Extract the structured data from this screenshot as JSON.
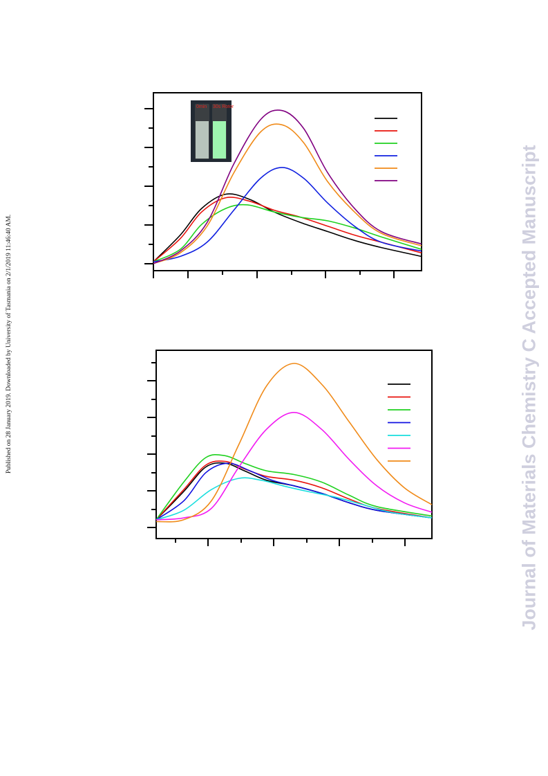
{
  "side_note": "Published on 28 January 2019. Downloaded by University of Tasmania on 2/1/2019 11:46:40 AM.",
  "watermark": "Journal of Materials Chemistry C Accepted Manuscript",
  "inset": {
    "vial_labels": [
      "0min",
      "30s Rotor"
    ],
    "colors": {
      "background": "#222a33",
      "left_vial": "#b8c4bc",
      "right_vial": "#9ff5b0"
    }
  },
  "chart_data": [
    {
      "type": "line",
      "title": "",
      "xlabel": "",
      "ylabel": "",
      "xlim": [
        0,
        1
      ],
      "ylim": [
        0,
        1
      ],
      "legend_position": "top-right",
      "grid": false,
      "series": [
        {
          "color": "#000000",
          "x": [
            0,
            0.1,
            0.18,
            0.27,
            0.36,
            0.45,
            0.55,
            0.65,
            0.75,
            0.85,
            1.0
          ],
          "y": [
            0.05,
            0.2,
            0.35,
            0.43,
            0.4,
            0.33,
            0.27,
            0.22,
            0.17,
            0.13,
            0.08
          ]
        },
        {
          "color": "#e8120c",
          "x": [
            0,
            0.1,
            0.18,
            0.27,
            0.36,
            0.45,
            0.55,
            0.65,
            0.75,
            0.85,
            1.0
          ],
          "y": [
            0.05,
            0.18,
            0.33,
            0.41,
            0.39,
            0.34,
            0.3,
            0.25,
            0.2,
            0.16,
            0.1
          ]
        },
        {
          "color": "#1fd11f",
          "x": [
            0,
            0.1,
            0.18,
            0.27,
            0.35,
            0.45,
            0.55,
            0.65,
            0.75,
            0.85,
            1.0
          ],
          "y": [
            0.05,
            0.12,
            0.26,
            0.35,
            0.37,
            0.33,
            0.3,
            0.28,
            0.24,
            0.19,
            0.12
          ]
        },
        {
          "color": "#1020e0",
          "x": [
            0,
            0.1,
            0.2,
            0.3,
            0.4,
            0.48,
            0.56,
            0.65,
            0.75,
            0.85,
            1.0
          ],
          "y": [
            0.05,
            0.08,
            0.16,
            0.34,
            0.52,
            0.58,
            0.52,
            0.38,
            0.25,
            0.16,
            0.11
          ]
        },
        {
          "color": "#f08a18",
          "x": [
            0,
            0.1,
            0.2,
            0.3,
            0.4,
            0.48,
            0.56,
            0.65,
            0.75,
            0.85,
            1.0
          ],
          "y": [
            0.04,
            0.1,
            0.25,
            0.55,
            0.78,
            0.82,
            0.72,
            0.5,
            0.33,
            0.21,
            0.14
          ]
        },
        {
          "color": "#800080",
          "x": [
            0,
            0.1,
            0.2,
            0.3,
            0.4,
            0.48,
            0.56,
            0.65,
            0.75,
            0.85,
            1.0
          ],
          "y": [
            0.04,
            0.11,
            0.27,
            0.6,
            0.85,
            0.9,
            0.8,
            0.55,
            0.35,
            0.22,
            0.15
          ]
        }
      ]
    },
    {
      "type": "line",
      "title": "",
      "xlabel": "",
      "ylabel": "",
      "xlim": [
        0,
        1
      ],
      "ylim": [
        0,
        1
      ],
      "legend_position": "top-right",
      "grid": false,
      "series": [
        {
          "color": "#000000",
          "x": [
            0,
            0.1,
            0.18,
            0.25,
            0.32,
            0.4,
            0.5,
            0.6,
            0.7,
            0.8,
            1.0
          ],
          "y": [
            0.1,
            0.25,
            0.38,
            0.4,
            0.36,
            0.31,
            0.28,
            0.24,
            0.19,
            0.15,
            0.11
          ]
        },
        {
          "color": "#e8120c",
          "x": [
            0,
            0.1,
            0.18,
            0.25,
            0.32,
            0.4,
            0.5,
            0.6,
            0.7,
            0.8,
            1.0
          ],
          "y": [
            0.1,
            0.26,
            0.39,
            0.41,
            0.37,
            0.33,
            0.31,
            0.27,
            0.21,
            0.16,
            0.11
          ]
        },
        {
          "color": "#1fd11f",
          "x": [
            0,
            0.1,
            0.18,
            0.25,
            0.32,
            0.4,
            0.5,
            0.6,
            0.7,
            0.8,
            1.0
          ],
          "y": [
            0.1,
            0.3,
            0.43,
            0.44,
            0.4,
            0.36,
            0.34,
            0.3,
            0.23,
            0.17,
            0.12
          ]
        },
        {
          "color": "#1010e0",
          "x": [
            0,
            0.1,
            0.18,
            0.26,
            0.34,
            0.42,
            0.5,
            0.6,
            0.7,
            0.8,
            1.0
          ],
          "y": [
            0.1,
            0.2,
            0.35,
            0.4,
            0.36,
            0.31,
            0.28,
            0.24,
            0.19,
            0.15,
            0.11
          ]
        },
        {
          "color": "#18dede",
          "x": [
            0,
            0.1,
            0.2,
            0.3,
            0.38,
            0.46,
            0.55,
            0.65,
            0.75,
            0.85,
            1.0
          ],
          "y": [
            0.1,
            0.15,
            0.26,
            0.32,
            0.31,
            0.28,
            0.25,
            0.22,
            0.18,
            0.14,
            0.11
          ]
        },
        {
          "color": "#f21af2",
          "x": [
            0,
            0.1,
            0.2,
            0.3,
            0.4,
            0.5,
            0.6,
            0.7,
            0.8,
            0.9,
            1.0
          ],
          "y": [
            0.1,
            0.11,
            0.16,
            0.38,
            0.58,
            0.67,
            0.58,
            0.42,
            0.28,
            0.19,
            0.14
          ]
        },
        {
          "color": "#f08a18",
          "x": [
            0,
            0.1,
            0.2,
            0.3,
            0.4,
            0.5,
            0.6,
            0.7,
            0.8,
            0.9,
            1.0
          ],
          "y": [
            0.09,
            0.1,
            0.2,
            0.5,
            0.81,
            0.93,
            0.82,
            0.62,
            0.42,
            0.27,
            0.18
          ]
        }
      ]
    }
  ]
}
